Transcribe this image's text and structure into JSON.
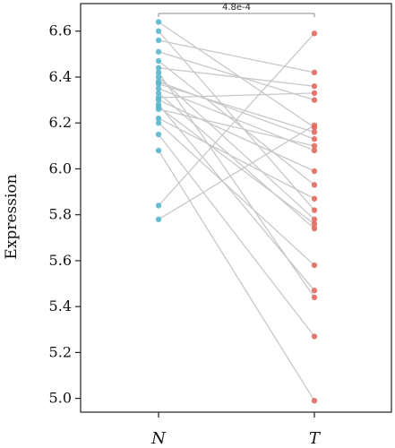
{
  "chart_data": {
    "type": "scatter",
    "subtype": "paired-dot",
    "ylabel": "Expression",
    "xlabel": "",
    "categories": [
      "N",
      "T"
    ],
    "ylim": [
      4.94,
      6.72
    ],
    "yticks": [
      5.0,
      5.2,
      5.4,
      5.6,
      5.8,
      6.0,
      6.2,
      6.4,
      6.6
    ],
    "ytick_labels": [
      "5.0",
      "5.2",
      "5.4",
      "5.6",
      "5.8",
      "6.0",
      "6.2",
      "6.4",
      "6.6"
    ],
    "grid": false,
    "legend": "none",
    "colors": {
      "N": "#5ab8cc",
      "T": "#e06b5e",
      "line": "#c8c8c8"
    },
    "p_value_label": "4.8e-4",
    "pairs": [
      {
        "N": 6.64,
        "T": 6.18
      },
      {
        "N": 6.6,
        "T": 5.82
      },
      {
        "N": 6.56,
        "T": 6.42
      },
      {
        "N": 6.51,
        "T": 6.3
      },
      {
        "N": 6.47,
        "T": 5.93
      },
      {
        "N": 6.44,
        "T": 6.36
      },
      {
        "N": 6.4,
        "T": 5.78
      },
      {
        "N": 6.37,
        "T": 6.16
      },
      {
        "N": 6.35,
        "T": 6.08
      },
      {
        "N": 6.33,
        "T": 5.74
      },
      {
        "N": 6.31,
        "T": 6.33
      },
      {
        "N": 6.28,
        "T": 5.47
      },
      {
        "N": 6.26,
        "T": 6.1
      },
      {
        "N": 6.2,
        "T": 5.58
      },
      {
        "N": 6.15,
        "T": 5.27
      },
      {
        "N": 6.08,
        "T": 4.99
      },
      {
        "N": 5.84,
        "T": 6.59
      },
      {
        "N": 5.78,
        "T": 6.19
      },
      {
        "N": 6.42,
        "T": 5.44
      },
      {
        "N": 6.3,
        "T": 5.99
      },
      {
        "N": 6.22,
        "T": 5.87
      },
      {
        "N": 6.38,
        "T": 6.13
      },
      {
        "N": 6.27,
        "T": 5.76
      }
    ]
  }
}
